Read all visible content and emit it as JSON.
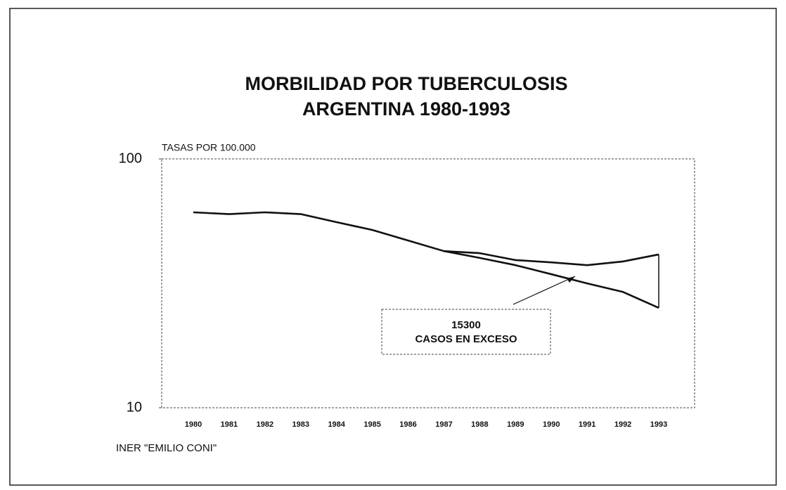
{
  "chart_data": {
    "type": "line",
    "title": [
      "MORBILIDAD POR TUBERCULOSIS",
      "ARGENTINA 1980-1993"
    ],
    "y_label": "TASAS POR 100.000",
    "source": "INER \"EMILIO CONI\"",
    "annotation": [
      "15300",
      "CASOS EN EXCESO"
    ],
    "categories": [
      "1980",
      "1981",
      "1982",
      "1983",
      "1984",
      "1985",
      "1986",
      "1987",
      "1988",
      "1989",
      "1990",
      "1991",
      "1992",
      "1993"
    ],
    "series": [
      {
        "color": "#111111",
        "values": [
          61,
          60,
          61,
          60,
          55.7,
          51.8,
          47,
          42.6,
          41.8,
          39.2,
          38.4,
          37.4,
          38.7,
          41.3
        ]
      },
      {
        "color": "#111111",
        "values": [
          null,
          null,
          null,
          null,
          null,
          null,
          null,
          42.6,
          40,
          37.4,
          34.4,
          31.6,
          29.2,
          25.2
        ]
      }
    ],
    "ylim": [
      10,
      100
    ],
    "yticks": [
      10,
      100
    ],
    "log_y": true
  }
}
